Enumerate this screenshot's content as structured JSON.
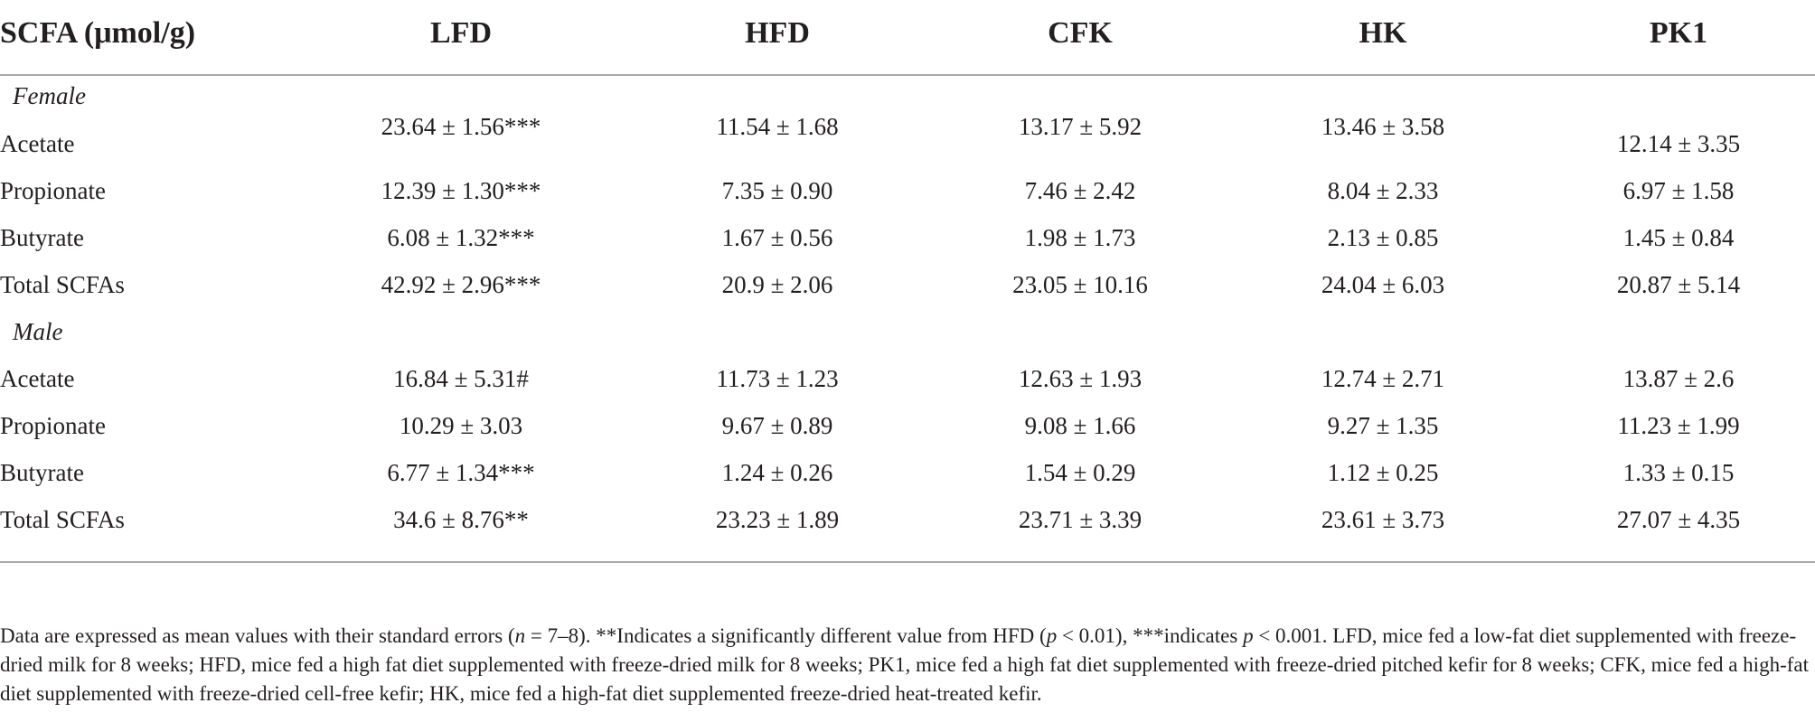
{
  "header": {
    "first": "SCFA (μmol/g)",
    "columns": [
      "LFD",
      "HFD",
      "CFK",
      "HK",
      "PK1"
    ]
  },
  "sections": [
    {
      "title": "Female",
      "rows": [
        {
          "label": "Acetate",
          "values": [
            "23.64 ± 1.56***",
            "11.54 ± 1.68",
            "13.17 ± 5.92",
            "13.46 ± 3.58",
            "12.14 ± 3.35"
          ]
        },
        {
          "label": "Propionate",
          "values": [
            "12.39 ± 1.30***",
            "7.35 ± 0.90",
            "7.46 ± 2.42",
            "8.04 ± 2.33",
            "6.97 ± 1.58"
          ]
        },
        {
          "label": "Butyrate",
          "values": [
            "6.08 ± 1.32***",
            "1.67 ± 0.56",
            "1.98 ± 1.73",
            "2.13 ± 0.85",
            "1.45 ± 0.84"
          ]
        },
        {
          "label": "Total SCFAs",
          "values": [
            "42.92 ± 2.96***",
            "20.9 ± 2.06",
            "23.05 ± 10.16",
            "24.04 ± 6.03",
            "20.87 ± 5.14"
          ]
        }
      ]
    },
    {
      "title": "Male",
      "rows": [
        {
          "label": "Acetate",
          "values": [
            "16.84 ± 5.31#",
            "11.73 ± 1.23",
            "12.63 ± 1.93",
            "12.74 ± 2.71",
            "13.87 ± 2.6"
          ]
        },
        {
          "label": "Propionate",
          "values": [
            "10.29 ± 3.03",
            "9.67 ± 0.89",
            "9.08 ± 1.66",
            "9.27 ± 1.35",
            "11.23 ± 1.99"
          ]
        },
        {
          "label": "Butyrate",
          "values": [
            "6.77 ± 1.34***",
            "1.24 ± 0.26",
            "1.54 ± 0.29",
            "1.12 ± 0.25",
            "1.33 ± 0.15"
          ]
        },
        {
          "label": "Total SCFAs",
          "values": [
            "34.6 ± 8.76**",
            "23.23 ± 1.89",
            "23.71 ± 3.39",
            "23.61 ± 3.73",
            "27.07 ± 4.35"
          ]
        }
      ]
    }
  ],
  "footnote": {
    "p1": "Data are expressed as mean values with their standard errors (",
    "n": "n",
    "p2": " = 7–8). **Indicates a significantly different value from HFD (",
    "p": "p",
    "p3": " < 0.01), ***indicates ",
    "p4": " < 0.001. LFD, mice fed a low-fat diet supplemented with freeze-dried milk for 8 weeks; HFD, mice fed a high fat diet supplemented with freeze-dried milk for 8 weeks; PK1, mice fed a high fat diet supplemented with freeze-dried pitched kefir for 8 weeks; CFK, mice fed a high-fat diet supplemented with freeze-dried cell-free kefir; HK, mice fed a high-fat diet supplemented freeze-dried heat-treated kefir."
  }
}
